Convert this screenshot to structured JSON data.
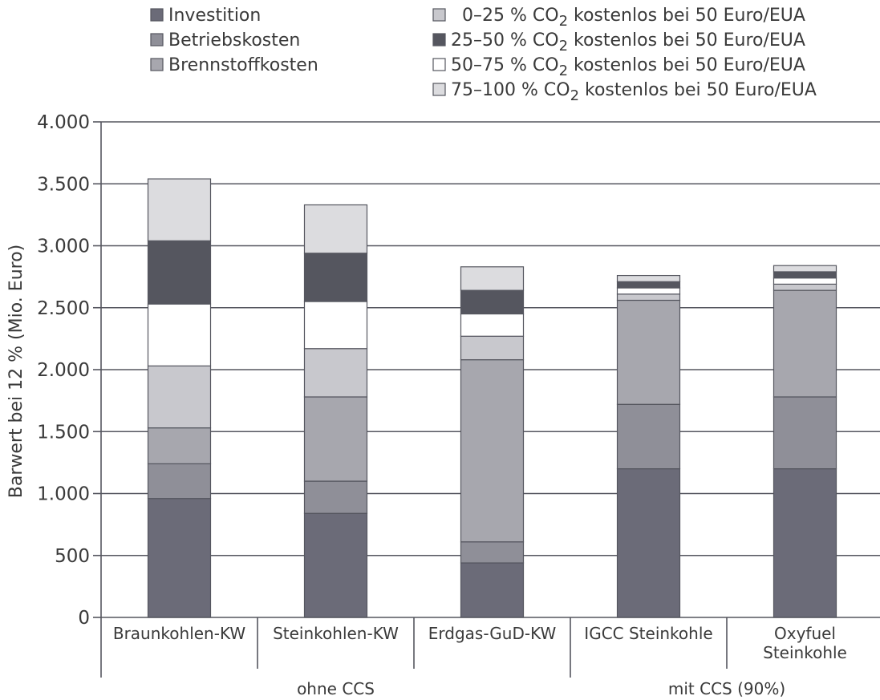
{
  "chart_data": {
    "type": "bar",
    "stacked": true,
    "ylabel": "Barwert bei 12 % (Mio. Euro)",
    "ylim": [
      0,
      4000
    ],
    "yticks": [
      0,
      500,
      1000,
      1500,
      2000,
      2500,
      3000,
      3500,
      4000
    ],
    "ytick_labels": [
      "0",
      "500",
      "1.000",
      "1.500",
      "2.000",
      "2.500",
      "3.000",
      "3.500",
      "4.000"
    ],
    "grid": true,
    "categories": [
      {
        "label": [
          "Braunkohlen-KW"
        ]
      },
      {
        "label": [
          "Steinkohlen-KW"
        ]
      },
      {
        "label": [
          "Erdgas-GuD-KW"
        ]
      },
      {
        "label": [
          "IGCC Steinkohle"
        ]
      },
      {
        "label": [
          "Oxyfuel",
          "Steinkohle"
        ]
      }
    ],
    "groups": [
      {
        "label": "ohne CCS",
        "categories": [
          0,
          1,
          2
        ]
      },
      {
        "label": "mit CCS (90%)",
        "categories": [
          3,
          4
        ]
      }
    ],
    "legend_left": [
      {
        "series": 0
      },
      {
        "series": 1
      },
      {
        "series": 2
      }
    ],
    "legend_right": [
      {
        "series": 3,
        "sub": "2"
      },
      {
        "series": 4,
        "sub": "2"
      },
      {
        "series": 5,
        "sub": "2"
      },
      {
        "series": 6,
        "sub": "2"
      }
    ],
    "series": [
      {
        "name": "Investition",
        "color": "#6b6b78",
        "values": [
          960,
          840,
          440,
          1200,
          1200
        ]
      },
      {
        "name": "Betriebskosten",
        "color": "#8f8f98",
        "values": [
          280,
          260,
          170,
          520,
          580
        ]
      },
      {
        "name": "Brennstoffkosten",
        "color": "#a7a7ae",
        "values": [
          290,
          680,
          1470,
          840,
          860
        ]
      },
      {
        "name_pre": "0–25 % CO",
        "name_post": " kostenlos bei 50 Euro/EUA",
        "color": "#c8c8cd",
        "values": [
          500,
          390,
          190,
          50,
          50
        ]
      },
      {
        "name_pre": "25–50 % CO",
        "name_post": " kostenlos bei 50 Euro/EUA",
        "color": "#55565f",
        "values": [
          510,
          390,
          190,
          50,
          50
        ]
      },
      {
        "name_pre": "50–75 % CO",
        "name_post": " kostenlos bei 50 Euro/EUA",
        "color": "#ffffff",
        "values": [
          500,
          380,
          180,
          50,
          50
        ]
      },
      {
        "name_pre": "75–100 % CO",
        "name_post": " kostenlos bei 50 Euro/EUA",
        "color": "#dcdcdf",
        "values": [
          500,
          390,
          190,
          50,
          50
        ]
      }
    ]
  }
}
